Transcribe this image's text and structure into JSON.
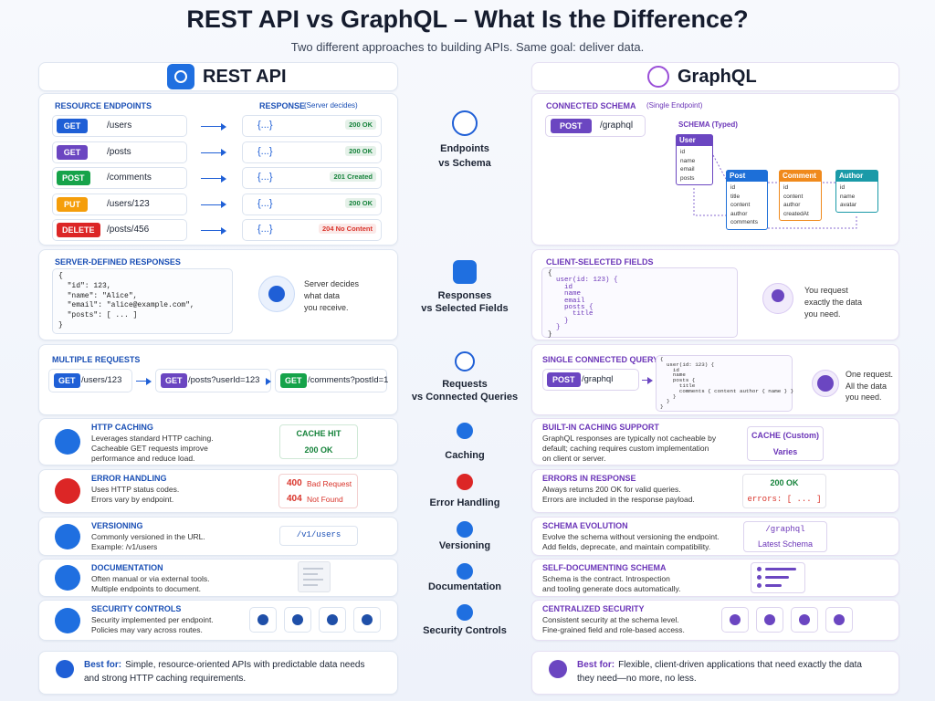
{
  "header": {
    "title": "REST API vs GraphQL – What Is the Difference?",
    "subtitle": "Two different approaches to building APIs. Same goal: deliver data."
  },
  "columns": {
    "rest": "REST API",
    "graphql": "GraphQL"
  },
  "endpoints": {
    "rest": {
      "label": "RESOURCE ENDPOINTS",
      "response_label": "RESPONSE",
      "response_note": "(Server decides)",
      "items": [
        {
          "method": "GET",
          "color": "#1f5fd6",
          "path": "/users",
          "body": "{...}",
          "status": "200 OK",
          "status_color": "#16833b"
        },
        {
          "method": "GET",
          "color": "#6b46c1",
          "path": "/posts",
          "body": "{...}",
          "status": "200 OK",
          "status_color": "#16833b"
        },
        {
          "method": "POST",
          "color": "#16a34a",
          "path": "/comments",
          "body": "{...}",
          "status": "201 Created",
          "status_color": "#16833b"
        },
        {
          "method": "PUT",
          "color": "#f59e0b",
          "path": "/users/123",
          "body": "{...}",
          "status": "200 OK",
          "status_color": "#16833b"
        },
        {
          "method": "DELETE",
          "color": "#dc2626",
          "path": "/posts/456",
          "body": "{...}",
          "status": "204 No Content",
          "status_color": "#d9342b"
        }
      ]
    },
    "center": [
      "Endpoints",
      "vs Schema"
    ],
    "graphql": {
      "label": "CONNECTED SCHEMA",
      "note": "(Single Endpoint)",
      "method": "POST",
      "path": "/graphql",
      "schema_label": "SCHEMA (Typed)",
      "types": [
        {
          "name": "User",
          "color": "#6b46c1",
          "fields": [
            "id",
            "name",
            "email",
            "posts"
          ]
        },
        {
          "name": "Post",
          "color": "#1d6fd8",
          "fields": [
            "id",
            "title",
            "content",
            "author",
            "comments"
          ]
        },
        {
          "name": "Comment",
          "color": "#f08a1c",
          "fields": [
            "id",
            "content",
            "author",
            "createdAt"
          ]
        },
        {
          "name": "Author",
          "color": "#1a9aa8",
          "fields": [
            "id",
            "name",
            "avatar"
          ]
        }
      ]
    }
  },
  "responses": {
    "rest": {
      "label": "SERVER-DEFINED RESPONSES",
      "code": [
        "{",
        "  \"id\": 123,",
        "  \"name\": \"Alice\",",
        "  \"email\": \"alice@example.com\",",
        "  \"posts\": [ ... ]",
        "}"
      ],
      "note": [
        "Server decides",
        "what data",
        "you receive."
      ]
    },
    "center": [
      "Responses",
      "vs Selected Fields"
    ],
    "graphql": {
      "label": "CLIENT-SELECTED FIELDS",
      "code": [
        "{",
        "  user(id: 123) {",
        "    id",
        "    name",
        "    email",
        "    posts {",
        "      title",
        "    }",
        "  }",
        "}"
      ],
      "note": [
        "You request",
        "exactly the data",
        "you need."
      ]
    }
  },
  "requests": {
    "rest": {
      "label": "MULTIPLE REQUESTS",
      "items": [
        {
          "method": "GET",
          "color": "#1f5fd6",
          "path": "/users/123"
        },
        {
          "method": "GET",
          "color": "#6b46c1",
          "path": "/posts?userId=123"
        },
        {
          "method": "GET",
          "color": "#16a34a",
          "path": "/comments?postId=1"
        }
      ]
    },
    "center": [
      "Requests",
      "vs Connected Queries"
    ],
    "graphql": {
      "label": "SINGLE CONNECTED QUERY",
      "method": "POST",
      "path": "/graphql",
      "code": [
        "{",
        "  user(id: 123) {",
        "    id",
        "    name",
        "    posts {",
        "      title",
        "      comments { content author { name } }",
        "    }",
        "  }",
        "}"
      ],
      "note": [
        "One request.",
        "All the data",
        "you need."
      ]
    }
  },
  "features": [
    {
      "rest": {
        "title": "HTTP CACHING",
        "lines": [
          "Leverages standard HTTP caching.",
          "Cacheable GET requests improve",
          "performance and reduce load."
        ],
        "badge": [
          "CACHE HIT",
          "200 OK"
        ]
      },
      "center": "Caching",
      "graphql": {
        "title": "BUILT-IN CACHING SUPPORT",
        "lines": [
          "GraphQL responses are typically not cacheable by",
          "default; caching requires custom implementation",
          "on client or server."
        ],
        "badge": [
          "CACHE (Custom)",
          "Varies"
        ]
      }
    },
    {
      "rest": {
        "title": "ERROR HANDLING",
        "lines": [
          "Uses HTTP status codes.",
          "Errors vary by endpoint."
        ],
        "badge": [
          {
            "code": "400",
            "text": "Bad Request"
          },
          {
            "code": "404",
            "text": "Not Found"
          }
        ]
      },
      "center": "Error Handling",
      "graphql": {
        "title": "ERRORS IN RESPONSE",
        "lines": [
          "Always returns 200 OK for valid queries.",
          "Errors are included in the response payload."
        ],
        "badge": [
          "200 OK",
          "errors: [ ... ]"
        ]
      }
    },
    {
      "rest": {
        "title": "VERSIONING",
        "lines": [
          "Commonly versioned in the URL.",
          "Example: /v1/users"
        ],
        "badge": [
          "/v1/users"
        ]
      },
      "center": "Versioning",
      "graphql": {
        "title": "SCHEMA EVOLUTION",
        "lines": [
          "Evolve the schema without versioning the endpoint.",
          "Add fields, deprecate, and maintain compatibility."
        ],
        "badge": [
          "/graphql",
          "Latest Schema"
        ]
      }
    },
    {
      "rest": {
        "title": "DOCUMENTATION",
        "lines": [
          "Often manual or via external tools.",
          "Multiple endpoints to document."
        ]
      },
      "center": "Documentation",
      "graphql": {
        "title": "SELF-DOCUMENTING SCHEMA",
        "lines": [
          "Schema is the contract. Introspection",
          "and tooling generate docs automatically."
        ]
      }
    },
    {
      "rest": {
        "title": "SECURITY CONTROLS",
        "lines": [
          "Security implemented per endpoint.",
          "Policies may vary across routes."
        ]
      },
      "center": "Security Controls",
      "graphql": {
        "title": "CENTRALIZED SECURITY",
        "lines": [
          "Consistent security at the schema level.",
          "Fine-grained field and role-based access."
        ]
      }
    }
  ],
  "footer": {
    "rest": {
      "lead": "Best for:",
      "lines": [
        "Simple, resource-oriented APIs with predictable data needs",
        "and strong HTTP caching requirements."
      ]
    },
    "graphql": {
      "lead": "Best for:",
      "lines": [
        "Flexible, client-driven applications that need exactly the data",
        "they need—no more, no less."
      ]
    }
  }
}
